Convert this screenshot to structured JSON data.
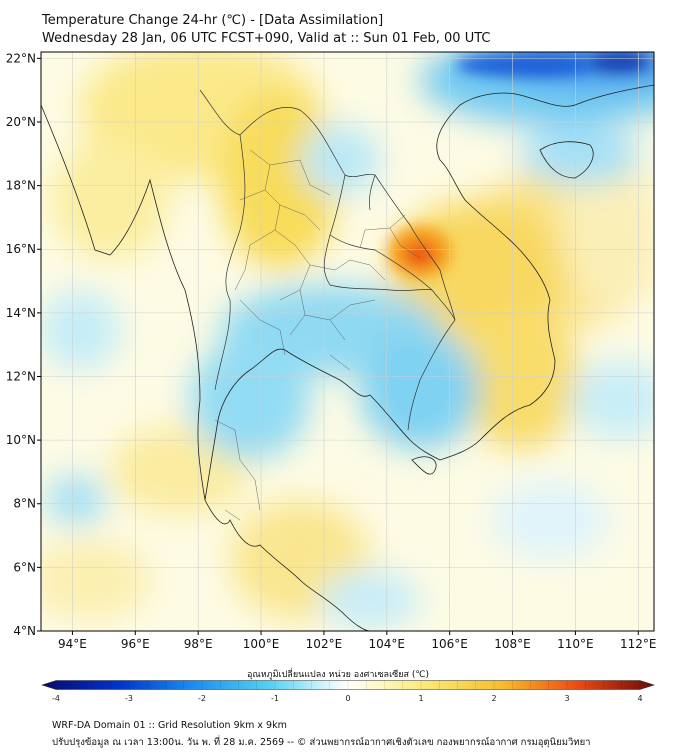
{
  "title": {
    "line1": "Temperature Change 24-hr (℃) - [Data Assimilation]",
    "line2": "Wednesday 28 Jan, 06 UTC FCST+090, Valid at :: Sun 01 Feb, 00 UTC"
  },
  "map": {
    "lon_range": [
      93,
      112.5
    ],
    "lat_range": [
      4,
      22.2
    ],
    "lat_ticks": [
      {
        "value": 22,
        "label": "22°N"
      },
      {
        "value": 20,
        "label": "20°N"
      },
      {
        "value": 18,
        "label": "18°N"
      },
      {
        "value": 16,
        "label": "16°N"
      },
      {
        "value": 14,
        "label": "14°N"
      },
      {
        "value": 12,
        "label": "12°N"
      },
      {
        "value": 10,
        "label": "10°N"
      },
      {
        "value": 8,
        "label": "8°N"
      },
      {
        "value": 6,
        "label": "6°N"
      },
      {
        "value": 4,
        "label": "4°N"
      }
    ],
    "lon_ticks": [
      {
        "value": 94,
        "label": "94°E"
      },
      {
        "value": 96,
        "label": "96°E"
      },
      {
        "value": 98,
        "label": "98°E"
      },
      {
        "value": 100,
        "label": "100°E"
      },
      {
        "value": 102,
        "label": "102°E"
      },
      {
        "value": 104,
        "label": "104°E"
      },
      {
        "value": 106,
        "label": "106°E"
      },
      {
        "value": 108,
        "label": "108°E"
      },
      {
        "value": 110,
        "label": "110°E"
      },
      {
        "value": 112,
        "label": "112°E"
      }
    ]
  },
  "colorbar": {
    "label": "อุณหภูมิเปลี่ยนแปลง หน่วย องศาเซลเซียส (℃)",
    "min": -4,
    "max": 4,
    "ticks": [
      {
        "value": -4,
        "label": "-4"
      },
      {
        "value": -3,
        "label": "-3"
      },
      {
        "value": -2,
        "label": "-2"
      },
      {
        "value": -1,
        "label": "-1"
      },
      {
        "value": 0,
        "label": "0"
      },
      {
        "value": 1,
        "label": "1"
      },
      {
        "value": 2,
        "label": "2"
      },
      {
        "value": 3,
        "label": "3"
      },
      {
        "value": 4,
        "label": "4"
      }
    ],
    "stops": [
      {
        "value": -4,
        "color": "#0a0a6a"
      },
      {
        "value": -3,
        "color": "#0033cc"
      },
      {
        "value": -2,
        "color": "#1e8ff0"
      },
      {
        "value": -1,
        "color": "#57d2f2"
      },
      {
        "value": -0.3,
        "color": "#d5f4fb"
      },
      {
        "value": 0,
        "color": "#ffffff"
      },
      {
        "value": 0.3,
        "color": "#fdfbd2"
      },
      {
        "value": 1,
        "color": "#fbe978"
      },
      {
        "value": 2,
        "color": "#f7bf2c"
      },
      {
        "value": 3,
        "color": "#ec4a14"
      },
      {
        "value": 4,
        "color": "#6b0a0a"
      }
    ]
  },
  "footer": {
    "line1": "WRF-DA Domain 01 :: Grid Resolution 9km x 9km",
    "line2": "ปรับปรุงข้อมูล ณ เวลา 13:00น. วัน พ. ที่ 28 ม.ค. 2569 -- © ส่วนพยากรณ์อากาศเชิงตัวเลข กองพยากรณ์อากาศ กรมอุตุนิยมวิทยา"
  }
}
